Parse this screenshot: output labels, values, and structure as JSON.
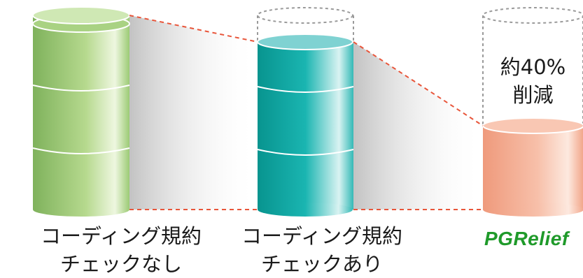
{
  "diagram": {
    "labels": {
      "without_check": [
        "コーディング規約",
        "チェックなし"
      ],
      "with_check": [
        "コーディング規約",
        "チェックあり"
      ],
      "brand": "PGRelief"
    },
    "reduction_note": [
      "約40%",
      "削減"
    ],
    "colors": {
      "green_cylinder": "#8fc06a",
      "teal_cylinder": "#14a7a5",
      "salmon_cylinder": "#f3a98d",
      "dashed_line": "#e8553a",
      "ghost_outline": "#9a9a9a",
      "brand_text": "#1f9a2a"
    }
  }
}
